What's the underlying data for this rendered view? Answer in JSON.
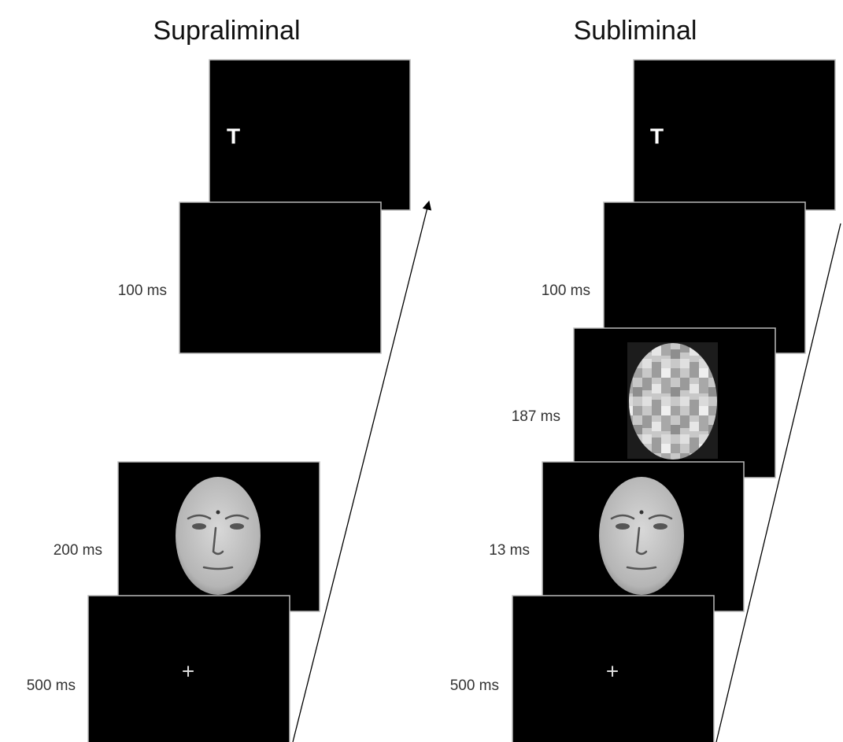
{
  "panels": [
    {
      "title": "Supraliminal",
      "screens": [
        {
          "text": "T"
        },
        {
          "label": "100 ms"
        },
        {
          "label": "200 ms"
        },
        {
          "label": "500 ms",
          "text": "+"
        }
      ]
    },
    {
      "title": "Subliminal",
      "screens": [
        {
          "text": "T"
        },
        {
          "label": "100 ms"
        },
        {
          "label": "187 ms"
        },
        {
          "label": "13 ms"
        },
        {
          "label": "500 ms",
          "text": "+"
        }
      ]
    }
  ]
}
